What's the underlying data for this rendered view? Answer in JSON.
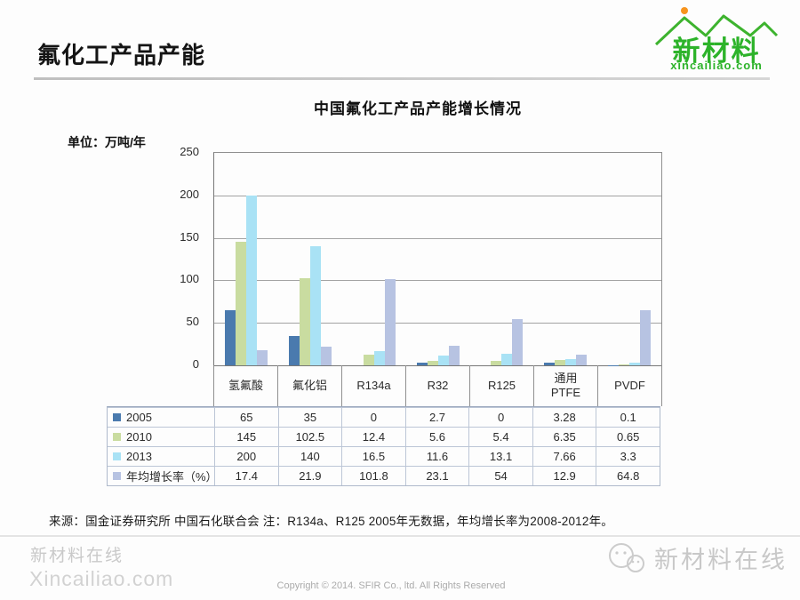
{
  "header": {
    "title": "氟化工产品产能"
  },
  "logo": {
    "name": "新材料",
    "domain": "xincailiao.com",
    "green": "#2db32a",
    "orange": "#f7941d"
  },
  "chart_data": {
    "type": "bar",
    "title": "中国氟化工产品产能增长情况",
    "unit_label": "单位：万吨/年",
    "categories": [
      "氢氟酸",
      "氟化铝",
      "R134a",
      "R32",
      "R125",
      "通用\nPTFE",
      "PVDF"
    ],
    "series": [
      {
        "name": "2005",
        "color": "#4a7aae",
        "values": [
          65,
          35,
          0,
          2.7,
          0,
          3.28,
          0.1
        ]
      },
      {
        "name": "2010",
        "color": "#c9dca0",
        "values": [
          145,
          102.5,
          12.4,
          5.6,
          5.4,
          6.35,
          0.65
        ]
      },
      {
        "name": "2013",
        "color": "#a9e2f5",
        "values": [
          200,
          140,
          16.5,
          11.6,
          13.1,
          7.66,
          3.3
        ]
      },
      {
        "name": "年均增长率（%）",
        "color": "#b7c3e2",
        "values": [
          17.4,
          21.9,
          101.8,
          23.1,
          54,
          12.9,
          64.8
        ]
      }
    ],
    "ylim": [
      0,
      250
    ],
    "yticks": [
      0,
      50,
      100,
      150,
      200,
      250
    ],
    "grid": true,
    "legend_position": "table-rows-left",
    "axis_color": "#8f8f8f",
    "gridline_color": "#a3a3a3"
  },
  "note": "来源：国金证券研究所 中国石化联合会 注：R134a、R125 2005年无数据，年均增长率为2008-2012年。",
  "footer": {
    "watermark_line1": "新材料在线",
    "watermark_line2": "Xincailiao.com",
    "copyright": "Copyright © 2014. SFIR Co., ltd. All Rights Reserved",
    "wechat_label": "新材料在线"
  }
}
